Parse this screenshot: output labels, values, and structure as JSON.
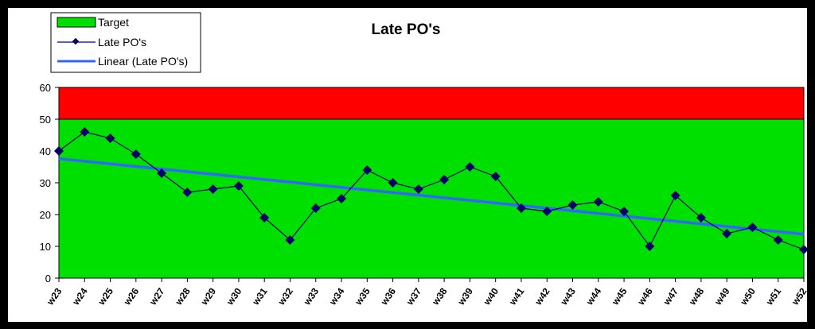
{
  "chart_data": {
    "type": "line",
    "title": "Late PO's",
    "categories": [
      "w23",
      "w24",
      "w25",
      "w26",
      "w27",
      "w28",
      "w29",
      "w30",
      "w31",
      "w32",
      "w33",
      "w34",
      "w35",
      "w36",
      "w37",
      "w38",
      "w39",
      "w40",
      "w41",
      "w42",
      "w43",
      "w44",
      "w45",
      "w46",
      "w47",
      "w48",
      "w49",
      "w50",
      "w51",
      "w52"
    ],
    "series": [
      {
        "name": "Late PO's",
        "color": "#000066",
        "values": [
          40,
          46,
          44,
          39,
          33,
          27,
          28,
          29,
          19,
          12,
          22,
          25,
          34,
          30,
          28,
          31,
          35,
          32,
          22,
          21,
          23,
          24,
          21,
          10,
          26,
          19,
          14,
          16,
          12,
          9
        ]
      },
      {
        "name": "Linear (Late PO's)",
        "color": "#3366FF",
        "start": 37.6,
        "end": 13.8
      }
    ],
    "target_band": {
      "name": "Target",
      "green": "#00E000",
      "red": "#FF0000",
      "threshold": 50
    },
    "ylim": [
      0,
      60
    ],
    "yticks": [
      0,
      10,
      20,
      30,
      40,
      50,
      60
    ],
    "legend": "top-left"
  }
}
